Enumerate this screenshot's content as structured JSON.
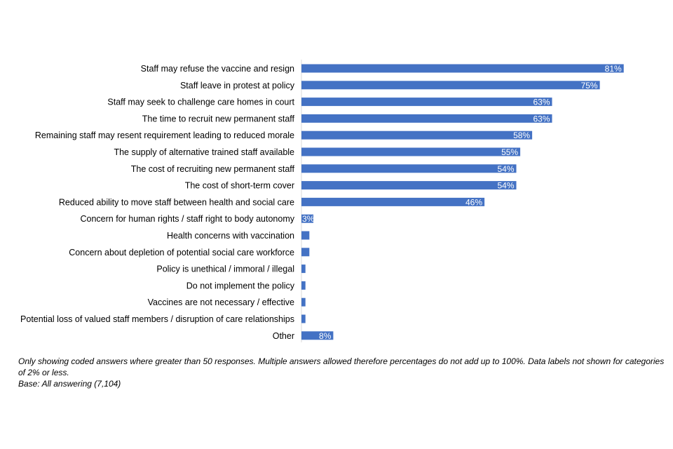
{
  "chart_data": {
    "type": "bar",
    "orientation": "horizontal",
    "categories": [
      "Staff may refuse the vaccine and resign",
      "Staff leave in protest at policy",
      "Staff may seek to challenge care homes in court",
      "The time to recruit new permanent staff",
      "Remaining staff may resent requirement leading to reduced morale",
      "The supply of alternative trained staff available",
      "The cost of recruiting new permanent staff",
      "The cost of short-term cover",
      "Reduced ability to move staff between health and social care",
      "Concern for human rights / staff right to body autonomy",
      "Health concerns with vaccination",
      "Concern about depletion of potential social care workforce",
      "Policy is unethical / immoral / illegal",
      "Do not implement the policy",
      "Vaccines are not necessary / effective",
      "Potential loss of valued staff members / disruption of care relationships",
      "Other"
    ],
    "values": [
      81,
      75,
      63,
      63,
      58,
      55,
      54,
      54,
      46,
      3,
      2,
      2,
      1,
      1,
      1,
      1,
      8
    ],
    "data_labels": [
      "81%",
      "75%",
      "63%",
      "63%",
      "58%",
      "55%",
      "54%",
      "54%",
      "46%",
      "3%",
      "",
      "",
      "",
      "",
      "",
      "",
      "8%"
    ],
    "bar_color": "#4472C4",
    "xlim": [
      0,
      100
    ],
    "grid": false,
    "legend": "none"
  },
  "footnote": {
    "line1": "Only showing coded answers where greater than 50 responses.  Multiple answers allowed therefore percentages do not add up to 100%. Data labels not shown for categories of 2% or less.",
    "line2": "Base: All answering (7,104)"
  }
}
